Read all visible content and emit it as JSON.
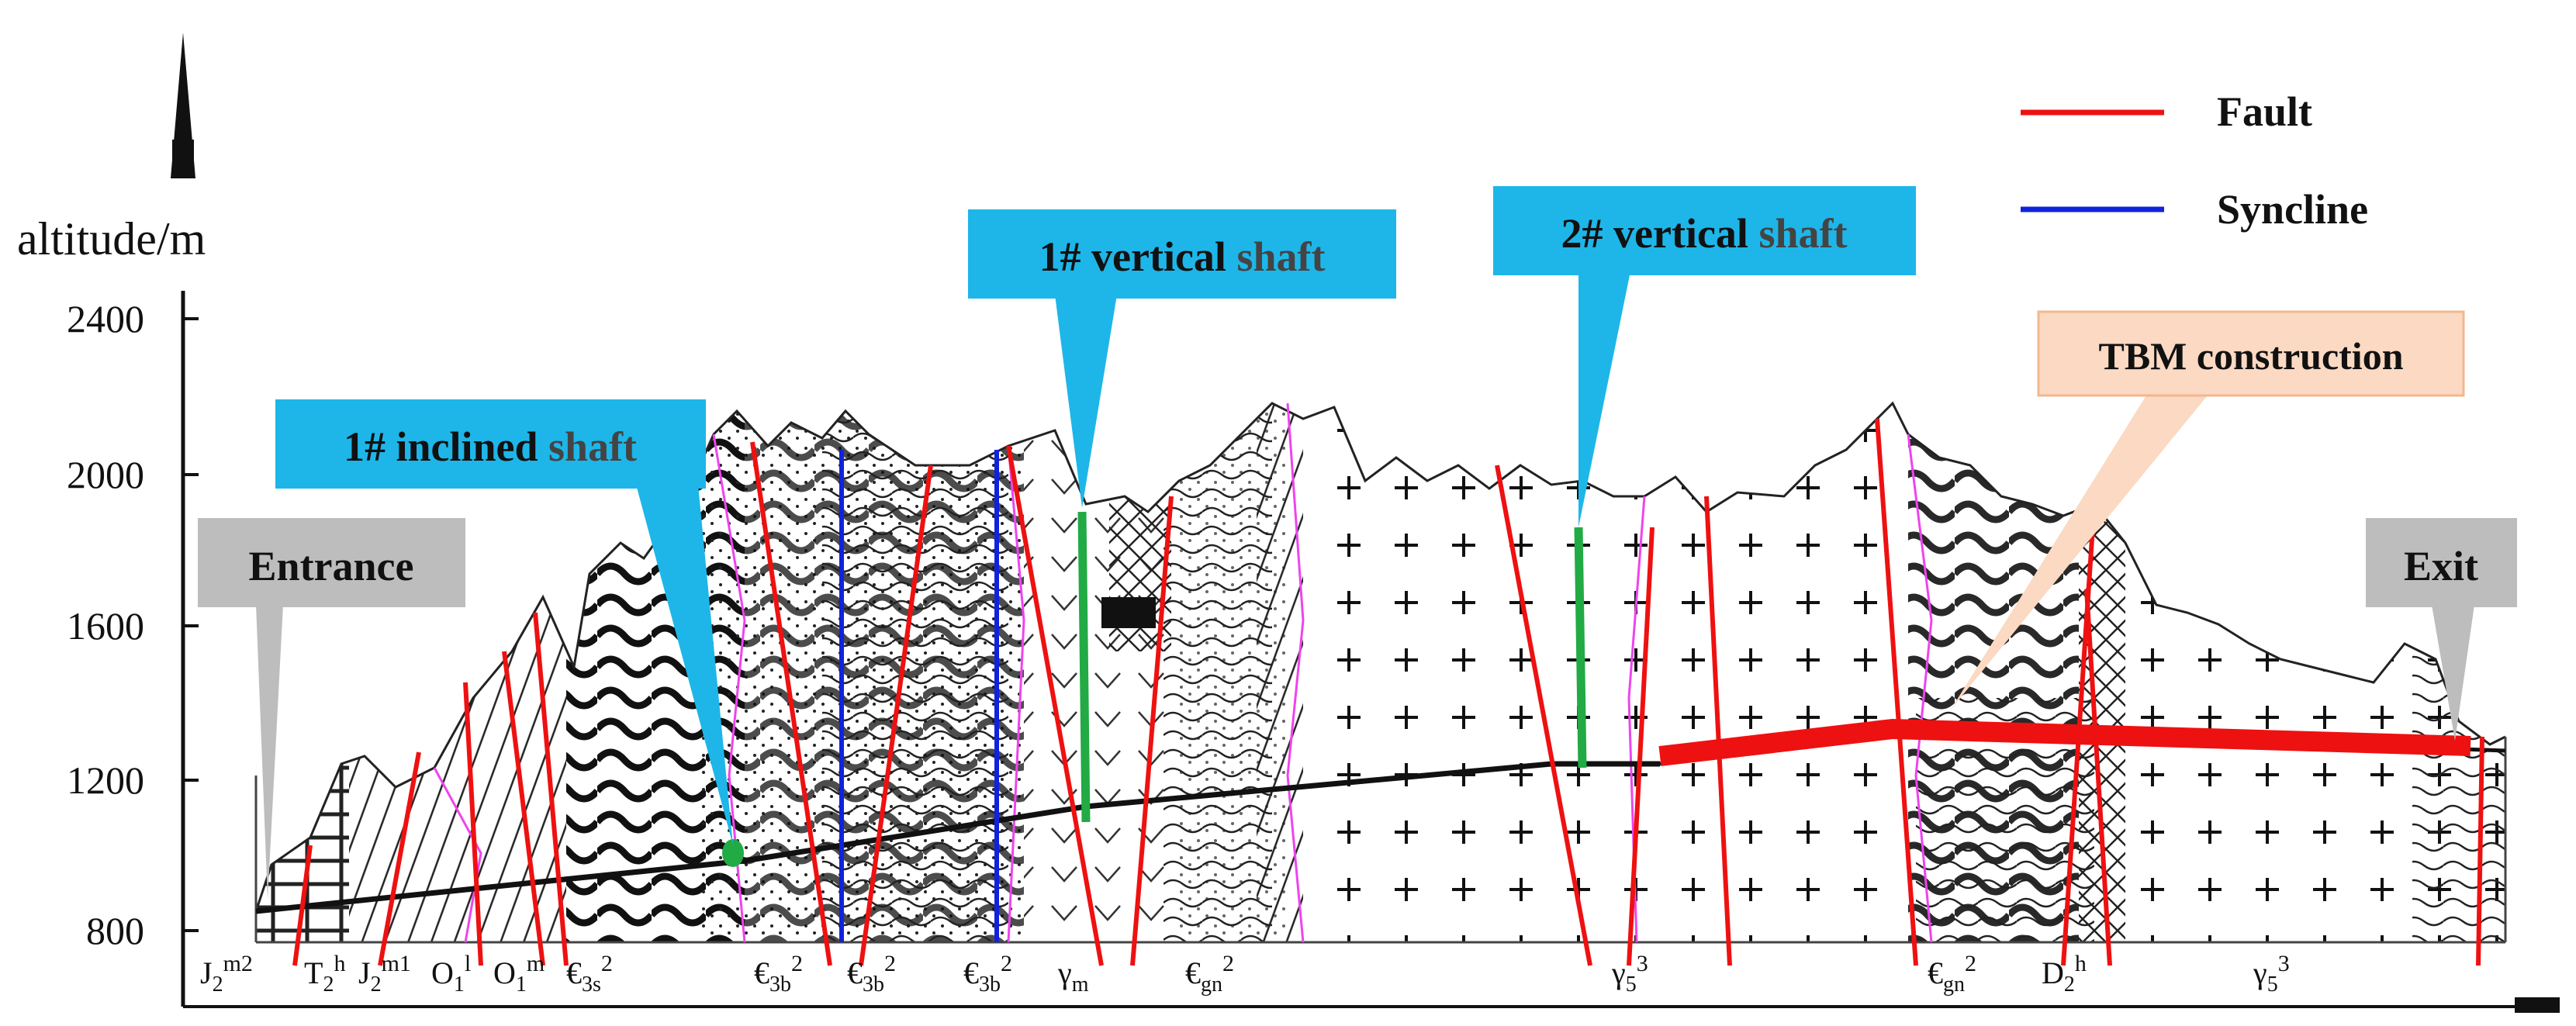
{
  "axis": {
    "ylabel": "altitude/m",
    "yticks": [
      "2400",
      "2000",
      "1600",
      "1200",
      "800"
    ]
  },
  "legend": {
    "items": [
      {
        "label": "Fault",
        "color": "#ee1111"
      },
      {
        "label": "Syncline",
        "color": "#1122dd"
      }
    ]
  },
  "callouts": {
    "inclined": {
      "lead": "1# inclined ",
      "tail": "shaft",
      "bg": "#1eb6e8"
    },
    "vertical1": {
      "lead": "1# vertical ",
      "tail": "shaft",
      "bg": "#1eb6e8"
    },
    "vertical2": {
      "lead": "2# vertical ",
      "tail": "shaft",
      "bg": "#1eb6e8"
    },
    "tbm": {
      "text": "TBM construction",
      "bg": "#fbd9c2"
    },
    "entrance": {
      "text": "Entrance",
      "bg": "#bdbdbd"
    },
    "exit": {
      "text": "Exit",
      "bg": "#bdbdbd"
    }
  },
  "strata_labels": [
    {
      "base": "J",
      "sub": "2",
      "sup": "m2"
    },
    {
      "base": "T",
      "sub": "2",
      "sup": "h"
    },
    {
      "base": "J",
      "sub": "2",
      "sup": "m1"
    },
    {
      "base": "O",
      "sub": "1",
      "sup": "l"
    },
    {
      "base": "O",
      "sub": "1",
      "sup": "m"
    },
    {
      "base": "€",
      "sub": "3s",
      "sup": "2"
    },
    {
      "base": "€",
      "sub": "3b",
      "sup": "2"
    },
    {
      "base": "€",
      "sub": "3b",
      "sup": "2"
    },
    {
      "base": "€",
      "sub": "3b",
      "sup": "2"
    },
    {
      "base": "γ",
      "sub": "m",
      "sup": ""
    },
    {
      "base": "€",
      "sub": "gn",
      "sup": "2"
    },
    {
      "base": "γ",
      "sub": "5",
      "sup": "3"
    },
    {
      "base": "€",
      "sub": "gn",
      "sup": "2"
    },
    {
      "base": "D",
      "sub": "2",
      "sup": "h"
    },
    {
      "base": "γ",
      "sub": "5",
      "sup": "3"
    }
  ],
  "colors": {
    "fault": "#ee1111",
    "syncline": "#1122dd",
    "shaft": "#22aa44",
    "tbm": "#ee1111",
    "tunnel": "#111111",
    "boundary": "#ee44ee"
  }
}
